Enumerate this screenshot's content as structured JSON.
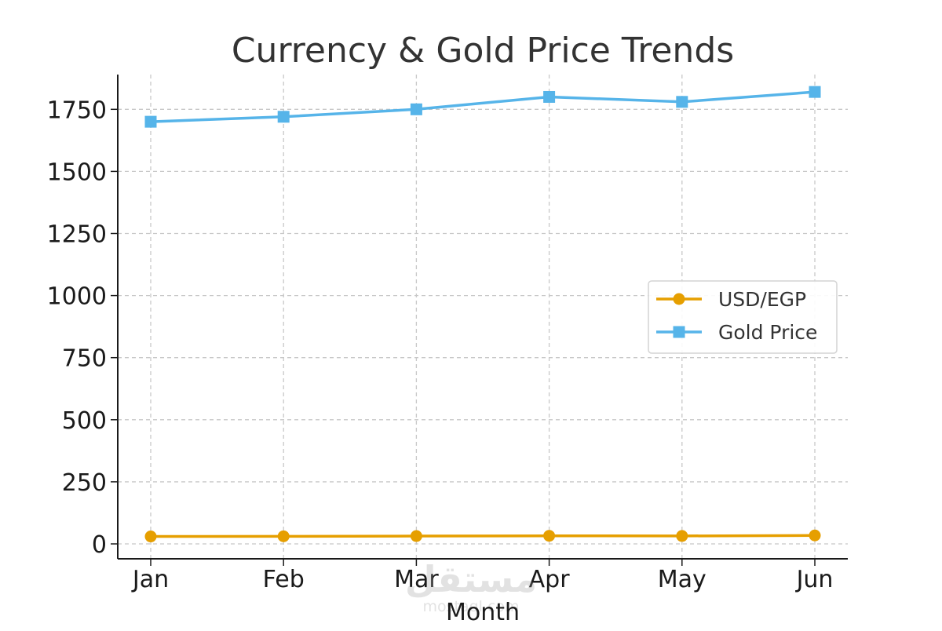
{
  "chart_data": {
    "type": "line",
    "title": "Currency & Gold Price Trends",
    "xlabel": "Month",
    "ylabel": "",
    "categories": [
      "Jan",
      "Feb",
      "Mar",
      "Apr",
      "May",
      "Jun"
    ],
    "ylim": [
      -60,
      1890
    ],
    "yticks": [
      0,
      250,
      500,
      750,
      1000,
      1250,
      1500,
      1750
    ],
    "grid": true,
    "legend_position": "center-right",
    "series": [
      {
        "name": "USD/EGP",
        "values": [
          30,
          30.5,
          31.5,
          32.5,
          32,
          34
        ],
        "color": "#E69F00",
        "marker": "circle"
      },
      {
        "name": "Gold Price",
        "values": [
          1700,
          1720,
          1750,
          1800,
          1780,
          1820
        ],
        "color": "#56B4E9",
        "marker": "square"
      }
    ]
  },
  "watermark": {
    "text": "مستقل",
    "subtext": "mostaql.com"
  }
}
